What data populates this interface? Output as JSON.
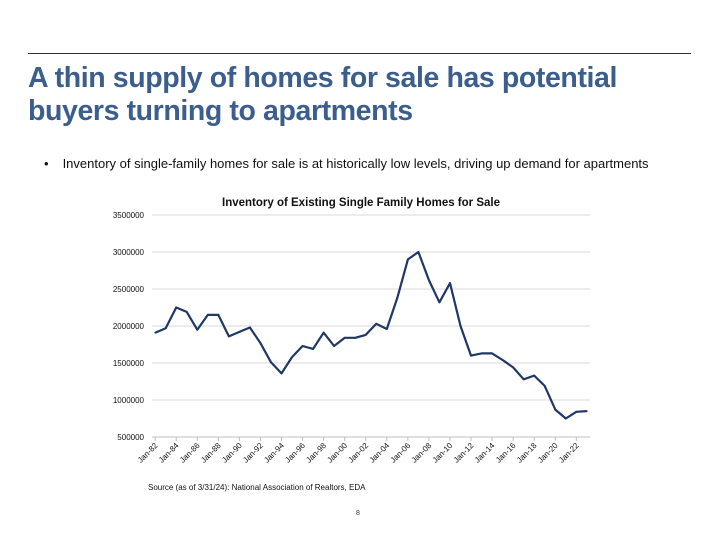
{
  "slide": {
    "title": "A thin supply of homes for sale has potential buyers turning to apartments",
    "bullet_marker": "•",
    "bullet": "Inventory of single-family homes for sale is at historically low levels, driving up demand for apartments",
    "source": "Source (as of 3/31/24): National Association of Realtors, EDA",
    "page_number": "8"
  },
  "chart_data": {
    "type": "line",
    "title": "Inventory of Existing Single Family Homes for Sale",
    "xlabel": "",
    "ylabel": "",
    "ylim": [
      500000,
      3500000
    ],
    "yticks": [
      "500000",
      "1000000",
      "1500000",
      "2000000",
      "2500000",
      "3000000",
      "3500000"
    ],
    "xticks": [
      "Jan-82",
      "Jan-84",
      "Jan-86",
      "Jan-88",
      "Jan-90",
      "Jan-92",
      "Jan-94",
      "Jan-96",
      "Jan-98",
      "Jan-00",
      "Jan-02",
      "Jan-04",
      "Jan-06",
      "Jan-08",
      "Jan-10",
      "Jan-12",
      "Jan-14",
      "Jan-16",
      "Jan-18",
      "Jan-20",
      "Jan-22"
    ],
    "grid": true,
    "color": "#1f3864",
    "x": [
      1982,
      1983,
      1984,
      1985,
      1986,
      1987,
      1988,
      1989,
      1990,
      1991,
      1992,
      1993,
      1994,
      1995,
      1996,
      1997,
      1998,
      1999,
      2000,
      2001,
      2002,
      2003,
      2004,
      2005,
      2006,
      2007,
      2008,
      2009,
      2010,
      2011,
      2012,
      2013,
      2014,
      2015,
      2016,
      2017,
      2018,
      2019,
      2020,
      2021,
      2022,
      2023
    ],
    "values": [
      1910000,
      1970000,
      2250000,
      2190000,
      1950000,
      2150000,
      2150000,
      1860000,
      1920000,
      1980000,
      1770000,
      1510000,
      1360000,
      1580000,
      1730000,
      1690000,
      1910000,
      1730000,
      1840000,
      1840000,
      1880000,
      2030000,
      1960000,
      2380000,
      2900000,
      3000000,
      2620000,
      2320000,
      2580000,
      2000000,
      1600000,
      1630000,
      1630000,
      1540000,
      1440000,
      1280000,
      1330000,
      1190000,
      870000,
      750000,
      840000,
      850000
    ]
  }
}
